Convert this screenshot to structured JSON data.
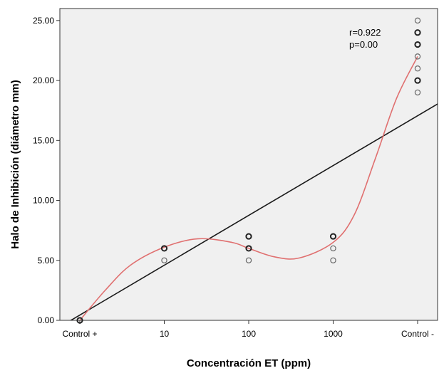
{
  "chart_data": {
    "type": "scatter",
    "title": "",
    "xlabel": "Concentración ET (ppm)",
    "ylabel": "Halo de Inhibición (diámetro mm)",
    "categories": [
      "Control +",
      "10",
      "100",
      "1000",
      "Control -"
    ],
    "ylim": [
      0,
      26
    ],
    "yticks": [
      "0.00",
      "5.00",
      "10.00",
      "15.00",
      "20.00",
      "25.00"
    ],
    "ytick_values": [
      0,
      5,
      10,
      15,
      20,
      25
    ],
    "points": [
      {
        "x": "Control +",
        "y": 0,
        "count": 6
      },
      {
        "x": "10",
        "y": 5,
        "count": 1
      },
      {
        "x": "10",
        "y": 6,
        "count": 5
      },
      {
        "x": "100",
        "y": 5,
        "count": 1
      },
      {
        "x": "100",
        "y": 6,
        "count": 3
      },
      {
        "x": "100",
        "y": 7,
        "count": 2
      },
      {
        "x": "1000",
        "y": 5,
        "count": 1
      },
      {
        "x": "1000",
        "y": 6,
        "count": 1
      },
      {
        "x": "1000",
        "y": 7,
        "count": 4
      },
      {
        "x": "Control -",
        "y": 19,
        "count": 1
      },
      {
        "x": "Control -",
        "y": 20,
        "count": 2
      },
      {
        "x": "Control -",
        "y": 21,
        "count": 1
      },
      {
        "x": "Control -",
        "y": 22,
        "count": 1
      },
      {
        "x": "Control -",
        "y": 23,
        "count": 2
      },
      {
        "x": "Control -",
        "y": 24,
        "count": 2
      },
      {
        "x": "Control -",
        "y": 25,
        "count": 1
      }
    ],
    "linear_fit": {
      "x_start": -0.25,
      "y_start": -0.6,
      "x_end": 4.25,
      "y_end": 18.1,
      "color": "#1a1a1a"
    },
    "smooth_fit": {
      "color": "#e07070",
      "x": [
        0,
        0.3,
        0.6,
        1.0,
        1.4,
        1.8,
        2.0,
        2.3,
        2.6,
        3.0,
        3.25,
        3.5,
        3.75,
        4.0
      ],
      "y": [
        0,
        2.5,
        4.6,
        6.1,
        6.8,
        6.5,
        6.0,
        5.3,
        5.2,
        6.5,
        8.8,
        13.5,
        18.5,
        22.0
      ]
    },
    "annotation": {
      "r": "r=0.922",
      "p": "p=0.00"
    },
    "grid": false,
    "background": "#f0f0f0",
    "marker_color": "#666666",
    "overlap_marker_color": "#222222"
  }
}
